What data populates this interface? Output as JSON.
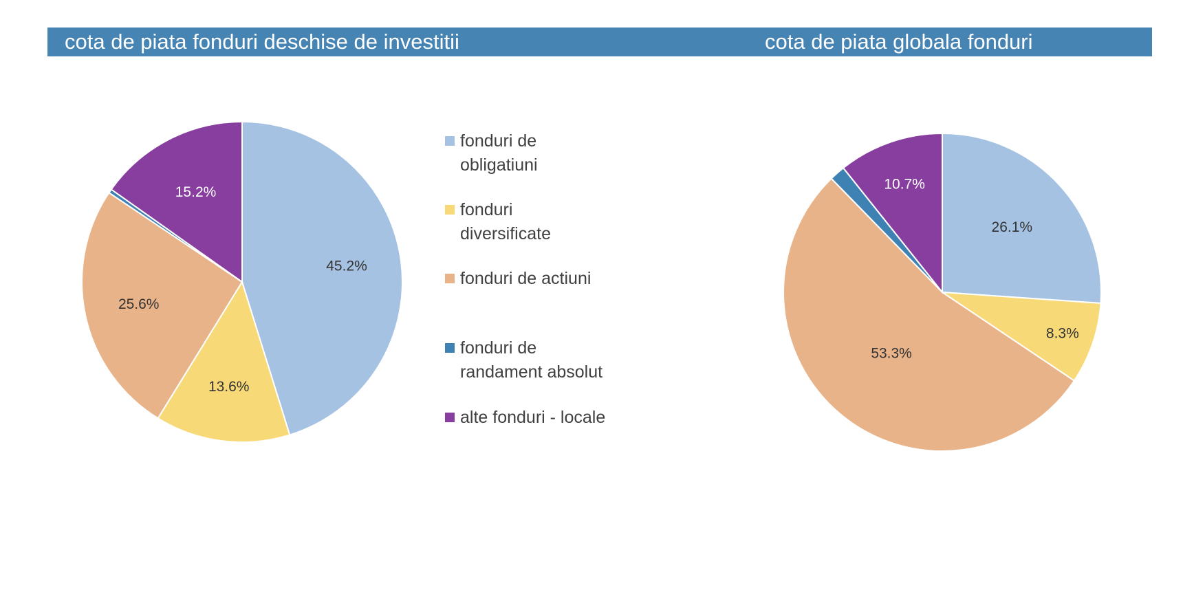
{
  "chart_data": [
    {
      "type": "pie",
      "title": "cota de piata fonduri deschise de investitii",
      "categories": [
        "fonduri de obligatiuni",
        "fonduri diversificate",
        "fonduri de actiuni",
        "fonduri de randament absolut",
        "alte fonduri - locale"
      ],
      "values": [
        45.2,
        13.6,
        25.6,
        0.4,
        15.2
      ],
      "data_labels": [
        "45.2%",
        "13.6%",
        "25.6%",
        "",
        "15.2%"
      ],
      "legend": "right"
    },
    {
      "type": "pie",
      "title": "cota de piata globala fonduri",
      "categories": [
        "fonduri de obligatiuni",
        "fonduri diversificate",
        "fonduri de actiuni",
        "fonduri de randament absolut",
        "alte fonduri - locale"
      ],
      "values": [
        26.1,
        8.3,
        53.3,
        1.6,
        10.7
      ],
      "data_labels": [
        "26.1%",
        "8.3%",
        "53.3%",
        "",
        "10.7%"
      ],
      "legend": "shared"
    }
  ],
  "colors": [
    "#a5c2e3",
    "#f7d977",
    "#e9b38a",
    "#3e81b3",
    "#873e9e"
  ],
  "legend": {
    "items": [
      {
        "label": "fonduri de\nobligatiuni"
      },
      {
        "label": "fonduri\ndiversificate"
      },
      {
        "label": "fonduri de actiuni"
      },
      {
        "label": "fonduri de\nrandament absolut"
      },
      {
        "label": "alte fonduri - locale"
      }
    ]
  }
}
